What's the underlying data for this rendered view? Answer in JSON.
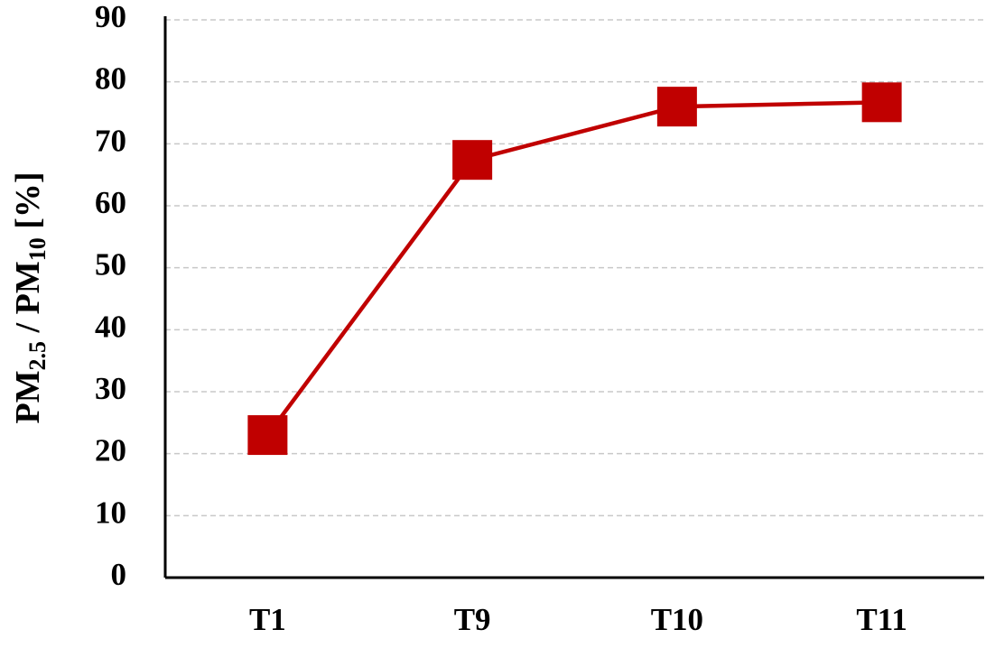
{
  "chart_data": {
    "type": "line",
    "ylabel": [
      "PM",
      "2.5",
      " / PM",
      "10",
      " [%]"
    ],
    "categories": [
      "T1",
      "T9",
      "T10",
      "T11"
    ],
    "series": [
      {
        "color": "#c00000",
        "values": [
          23,
          67.4,
          76,
          76.7
        ]
      }
    ],
    "ylim": [
      0,
      90
    ],
    "yticks": [
      0,
      10,
      20,
      30,
      40,
      50,
      60,
      70,
      80,
      90
    ],
    "grid": true
  }
}
